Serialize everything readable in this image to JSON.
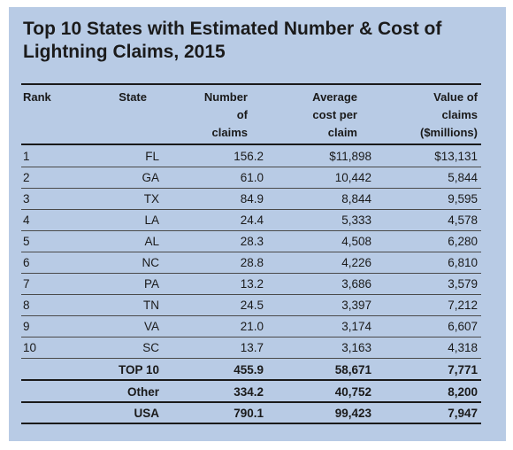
{
  "title": "Top 10 States with Estimated Number & Cost of Lightning Claims, 2015",
  "headers": {
    "rank": "Rank",
    "state": "State",
    "number": [
      "Number",
      "of",
      "claims"
    ],
    "average": [
      "Average",
      "cost per",
      "claim"
    ],
    "value": [
      "Value of",
      "claims",
      "($millions)"
    ]
  },
  "rows": [
    {
      "rank": "1",
      "state": "FL",
      "number": "156.2",
      "average": "$11,898",
      "value": "$13,131"
    },
    {
      "rank": "2",
      "state": "GA",
      "number": "61.0",
      "average": "10,442",
      "value": "5,844"
    },
    {
      "rank": "3",
      "state": "TX",
      "number": "84.9",
      "average": "8,844",
      "value": "9,595"
    },
    {
      "rank": "4",
      "state": "LA",
      "number": "24.4",
      "average": "5,333",
      "value": "4,578"
    },
    {
      "rank": "5",
      "state": "AL",
      "number": "28.3",
      "average": "4,508",
      "value": "6,280"
    },
    {
      "rank": "6",
      "state": "NC",
      "number": "28.8",
      "average": "4,226",
      "value": "6,810"
    },
    {
      "rank": "7",
      "state": "PA",
      "number": "13.2",
      "average": "3,686",
      "value": "3,579"
    },
    {
      "rank": "8",
      "state": "TN",
      "number": "24.5",
      "average": "3,397",
      "value": "7,212"
    },
    {
      "rank": "9",
      "state": "VA",
      "number": "21.0",
      "average": "3,174",
      "value": "6,607"
    },
    {
      "rank": "10",
      "state": "SC",
      "number": "13.7",
      "average": "3,163",
      "value": "4,318"
    }
  ],
  "totals": [
    {
      "label": "TOP 10",
      "number": "455.9",
      "average": "58,671",
      "value": "7,771"
    },
    {
      "label": "Other",
      "number": "334.2",
      "average": "40,752",
      "value": "8,200"
    },
    {
      "label": "USA",
      "number": "790.1",
      "average": "99,423",
      "value": "7,947"
    }
  ]
}
